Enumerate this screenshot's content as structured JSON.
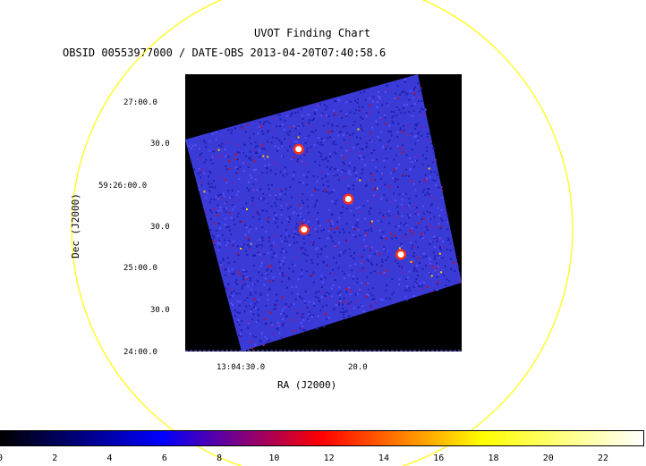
{
  "chart_data": {
    "type": "heatmap",
    "title": "UVOT Finding Chart",
    "subtitle": "OBSID 00553977000 / DATE-OBS 2013-04-20T07:40:58.6",
    "xlabel": "RA (J2000)",
    "ylabel": "Dec (J2000)",
    "x_ticks": [
      "13:04:30.0",
      "20.0"
    ],
    "y_ticks": [
      "27:00.0",
      "30.0",
      "59:26:00.0",
      "30.0",
      "25:00.0",
      "30.0",
      "24:00.0"
    ],
    "colorbar": {
      "ticks": [
        "0",
        "2",
        "4",
        "6",
        "8",
        "10",
        "12",
        "14",
        "16",
        "18",
        "20",
        "22"
      ],
      "range": [
        0,
        23.5
      ],
      "colormap": [
        "#000000",
        "#0000ff",
        "#ff0000",
        "#ffff00",
        "#ffffff"
      ]
    },
    "background_color": "#3a3ad6",
    "sources": [
      {
        "x": 0.41,
        "y": 0.27
      },
      {
        "x": 0.59,
        "y": 0.45
      },
      {
        "x": 0.43,
        "y": 0.56
      },
      {
        "x": 0.78,
        "y": 0.65
      }
    ],
    "overlay_circle_color": "#ffff00"
  }
}
